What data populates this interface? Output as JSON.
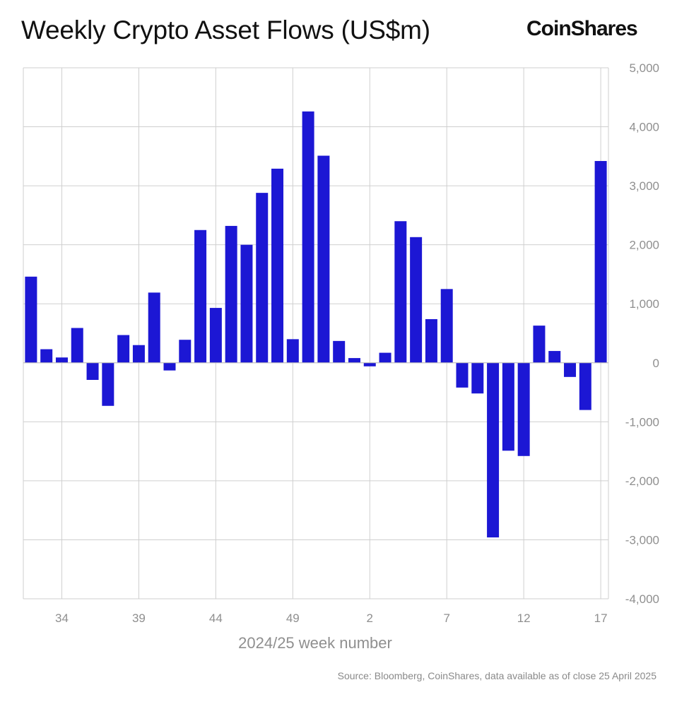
{
  "header": {
    "title": "Weekly Crypto Asset Flows (US$m)",
    "brand": "CoinShares"
  },
  "footer": {
    "source": "Source: Bloomberg, CoinShares, data available as of close 25 April 2025"
  },
  "colors": {
    "bar": "#1c17d4",
    "grid": "#cfcfcf",
    "tick_text": "#8f8f8f"
  },
  "chart_data": {
    "type": "bar",
    "title": "Weekly Crypto Asset Flows (US$m)",
    "xlabel": "2024/25 week number",
    "ylabel": "",
    "ylim": [
      -4000,
      5000
    ],
    "yticks": [
      5000,
      4000,
      3000,
      2000,
      1000,
      0,
      -1000,
      -2000,
      -3000,
      -4000
    ],
    "ytick_labels": [
      "5,000",
      "4,000",
      "3,000",
      "2,000",
      "1,000",
      "0",
      "-1,000",
      "-2,000",
      "-3,000",
      "-4,000"
    ],
    "y_axis_side": "right",
    "grid": true,
    "x_tick_labels": [
      "34",
      "39",
      "44",
      "49",
      "2",
      "7",
      "12",
      "17"
    ],
    "categories": [
      "32",
      "33",
      "34",
      "35",
      "36",
      "37",
      "38",
      "39",
      "40",
      "41",
      "42",
      "43",
      "44",
      "45",
      "46",
      "47",
      "48",
      "49",
      "50",
      "51",
      "52",
      "1",
      "2",
      "3",
      "4",
      "5",
      "6",
      "7",
      "8",
      "9",
      "10",
      "11",
      "12",
      "13",
      "14",
      "15",
      "16",
      "17"
    ],
    "values": [
      1460,
      230,
      90,
      590,
      -290,
      -730,
      470,
      300,
      1190,
      -130,
      390,
      2250,
      930,
      2320,
      2000,
      2880,
      3290,
      400,
      4260,
      3510,
      370,
      80,
      -60,
      170,
      2400,
      2130,
      740,
      1250,
      -420,
      -520,
      -2960,
      -1490,
      -1580,
      630,
      200,
      -240,
      -800,
      3420
    ]
  }
}
